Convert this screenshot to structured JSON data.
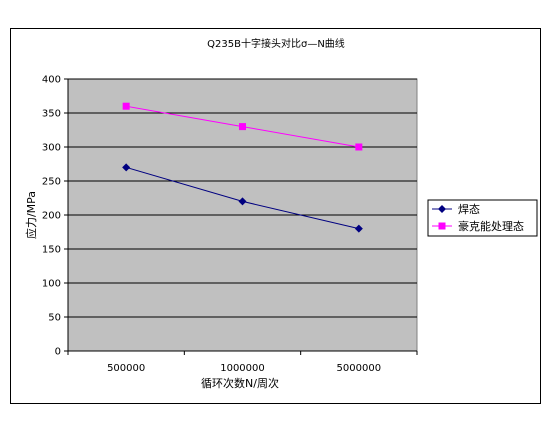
{
  "chart_data": {
    "type": "line",
    "title": "Q235B十字接头对比σ—N曲线",
    "xlabel": "循环次数N/周次",
    "ylabel": "应力/MPa",
    "categories": [
      "500000",
      "1000000",
      "5000000"
    ],
    "ylim": [
      0,
      400
    ],
    "yticks": [
      0,
      50,
      100,
      150,
      200,
      250,
      300,
      350,
      400
    ],
    "grid": true,
    "legend_position": "right",
    "series": [
      {
        "name": "焊态",
        "values": [
          270,
          220,
          180
        ],
        "color": "#000080",
        "marker": "diamond"
      },
      {
        "name": "豪克能处理态",
        "values": [
          360,
          330,
          300
        ],
        "color": "#ff00ff",
        "marker": "square"
      }
    ]
  },
  "colors": {
    "plot_background": "#c0c0c0",
    "gridline": "#000000"
  }
}
